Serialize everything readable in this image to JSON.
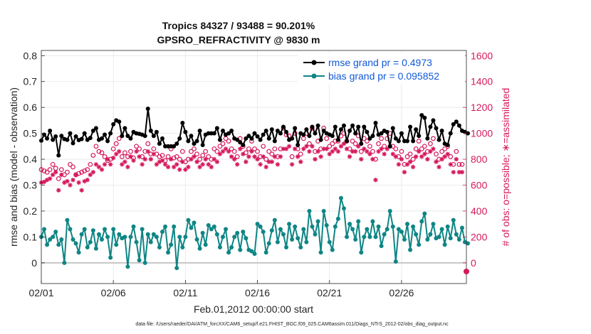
{
  "chart_data": {
    "type": "line",
    "title": "Tropics 84327 / 93488 = 90.201%",
    "subtitle": "GPSRO_REFRACTIVITY @ 9830 m",
    "xlabel": "Feb.01,2012 00:00:00 start",
    "ylabel": "rmse and bias (model - observation)",
    "y2label": "# of obs: o=possible; ∗=assimilated",
    "xticks": [
      "02/01",
      "02/06",
      "02/11",
      "02/16",
      "02/21",
      "02/26"
    ],
    "yticks": [
      "0",
      "0.1",
      "0.2",
      "0.3",
      "0.4",
      "0.5",
      "0.6",
      "0.7",
      "0.8"
    ],
    "y2ticks": [
      "0",
      "200",
      "400",
      "600",
      "800",
      "1000",
      "1200",
      "1400",
      "1600"
    ],
    "xlim": [
      0,
      29.5
    ],
    "ylim": [
      -0.08,
      0.82
    ],
    "y2lim": [
      -160,
      1640
    ],
    "footnote": "data file: /Users/raeder/DAI/ATM_forcXX/CAM6_setup/f.e21.FHIST_BGC.f09_025.CAM6assim.011/Diags_NTrS_2012-02/obs_diag_output.nc",
    "legend": [
      "rmse grand pr = 0.4973",
      "bias grand pr = 0.095852"
    ],
    "colors": {
      "rmse": "#000000",
      "bias": "#0f8585",
      "obs": "#d6185c",
      "zero": "#c6c6c6",
      "legend_text": "#1058d8"
    },
    "series": [
      {
        "name": "rmse",
        "axis": "left",
        "values": [
          0.472,
          0.495,
          0.48,
          0.51,
          0.475,
          0.488,
          0.415,
          0.49,
          0.478,
          0.475,
          0.5,
          0.462,
          0.488,
          0.474,
          0.478,
          0.5,
          0.475,
          0.482,
          0.51,
          0.52,
          0.475,
          0.48,
          0.495,
          0.47,
          0.5,
          0.535,
          0.55,
          0.545,
          0.49,
          0.52,
          0.49,
          0.48,
          0.505,
          0.5,
          0.498,
          0.495,
          0.49,
          0.595,
          0.51,
          0.49,
          0.505,
          0.46,
          0.48,
          0.45,
          0.45,
          0.45,
          0.45,
          0.46,
          0.48,
          0.54,
          0.505,
          0.47,
          0.49,
          0.46,
          0.47,
          0.51,
          0.455,
          0.495,
          0.5,
          0.5,
          0.5,
          0.52,
          0.475,
          0.51,
          0.495,
          0.5,
          0.51,
          0.48,
          0.475,
          0.465,
          0.455,
          0.48,
          0.49,
          0.48,
          0.5,
          0.488,
          0.475,
          0.495,
          0.51,
          0.48,
          0.515,
          0.47,
          0.51,
          0.5,
          0.525,
          0.505,
          0.475,
          0.48,
          0.52,
          0.455,
          0.5,
          0.495,
          0.515,
          0.49,
          0.525,
          0.5,
          0.53,
          0.475,
          0.51,
          0.5,
          0.495,
          0.49,
          0.525,
          0.475,
          0.515,
          0.53,
          0.47,
          0.51,
          0.53,
          0.5,
          0.525,
          0.46,
          0.525,
          0.505,
          0.48,
          0.49,
          0.54,
          0.495,
          0.5,
          0.51,
          0.505,
          0.45,
          0.52,
          0.48,
          0.47,
          0.5,
          0.47,
          0.47,
          0.525,
          0.47,
          0.515,
          0.49,
          0.57,
          0.56,
          0.48,
          0.525,
          0.55,
          0.52,
          0.475,
          0.51,
          0.46,
          0.455,
          0.5,
          0.535,
          0.545,
          0.53,
          0.51,
          0.505,
          0.5
        ]
      },
      {
        "name": "bias",
        "axis": "left",
        "values": [
          0.1,
          0.13,
          0.07,
          0.09,
          0.1,
          0.12,
          0.07,
          0.09,
          0.0,
          0.165,
          0.13,
          0.09,
          0.075,
          0.04,
          0.11,
          0.13,
          0.06,
          0.08,
          0.125,
          0.055,
          0.11,
          0.09,
          0.13,
          0.1,
          0.02,
          0.13,
          0.07,
          0.11,
          0.095,
          0.1,
          -0.015,
          0.1,
          0.14,
          0.08,
          0.01,
          0.13,
          0.0,
          0.11,
          0.08,
          0.11,
          0.1,
          0.06,
          0.12,
          0.14,
          0.04,
          0.07,
          0.14,
          -0.02,
          0.1,
          0.06,
          0.1,
          0.165,
          0.135,
          0.155,
          0.09,
          0.055,
          0.115,
          0.07,
          0.145,
          0.13,
          0.14,
          0.11,
          0.06,
          0.1,
          0.13,
          0.04,
          0.06,
          0.1,
          0.115,
          0.05,
          0.12,
          0.095,
          0.05,
          0.045,
          0.035,
          0.15,
          0.14,
          0.12,
          0.04,
          0.075,
          0.125,
          0.165,
          0.08,
          0.13,
          0.11,
          0.06,
          0.15,
          0.09,
          0.14,
          0.095,
          0.06,
          0.13,
          0.08,
          0.2,
          0.14,
          0.11,
          0.16,
          0.04,
          0.2,
          0.145,
          0.08,
          0.05,
          0.14,
          0.17,
          0.25,
          0.21,
          0.1,
          0.15,
          0.13,
          0.09,
          0.16,
          0.04,
          0.1,
          0.13,
          0.1,
          0.16,
          0.1,
          0.14,
          0.065,
          0.11,
          0.13,
          0.2,
          0.14,
          0.005,
          0.13,
          0.12,
          0.09,
          0.15,
          0.05,
          0.14,
          0.11,
          0.07,
          0.16,
          0.19,
          0.09,
          0.11,
          0.15,
          0.095,
          0.1,
          0.13,
          0.07,
          0.14,
          0.095,
          0.165,
          0.11,
          0.09,
          0.135,
          0.08,
          0.075
        ]
      },
      {
        "name": "possible",
        "axis": "right",
        "values": [
          720,
          710,
          700,
          720,
          760,
          730,
          650,
          720,
          680,
          700,
          760,
          740,
          680,
          690,
          700,
          710,
          720,
          760,
          830,
          900,
          860,
          850,
          820,
          790,
          800,
          880,
          920,
          960,
          820,
          850,
          820,
          860,
          810,
          900,
          880,
          820,
          860,
          920,
          840,
          880,
          840,
          820,
          830,
          790,
          820,
          880,
          810,
          820,
          800,
          860,
          780,
          800,
          860,
          880,
          840,
          800,
          830,
          860,
          820,
          800,
          880,
          860,
          900,
          920,
          960,
          940,
          880,
          860,
          820,
          960,
          900,
          850,
          880,
          940,
          880,
          860,
          820,
          900,
          800,
          860,
          840,
          880,
          820,
          880,
          1040,
          990,
          980,
          820,
          1000,
          880,
          840,
          960,
          1000,
          920,
          1040,
          860,
          940,
          880,
          1040,
          960,
          900,
          920,
          940,
          940,
          980,
          1000,
          940,
          880,
          940,
          920,
          980,
          860,
          960,
          940,
          900,
          860,
          800,
          920,
          960,
          900,
          960,
          1000,
          900,
          880,
          820,
          860,
          760,
          820,
          840,
          800,
          880,
          940,
          880,
          900,
          860,
          920,
          960,
          840,
          800,
          860,
          880,
          900,
          820,
          760,
          860,
          760,
          760
        ]
      },
      {
        "name": "assimilated",
        "axis": "right",
        "values": [
          620,
          625,
          640,
          650,
          680,
          700,
          560,
          680,
          620,
          630,
          600,
          640,
          680,
          620,
          560,
          630,
          640,
          680,
          700,
          760,
          740,
          720,
          760,
          800,
          760,
          810,
          840,
          860,
          760,
          780,
          740,
          820,
          790,
          860,
          820,
          760,
          800,
          860,
          800,
          840,
          760,
          780,
          790,
          760,
          740,
          800,
          740,
          760,
          720,
          780,
          720,
          740,
          800,
          820,
          780,
          740,
          760,
          800,
          760,
          740,
          800,
          780,
          840,
          860,
          880,
          860,
          820,
          800,
          760,
          880,
          840,
          780,
          820,
          860,
          820,
          800,
          760,
          820,
          740,
          780,
          780,
          820,
          760,
          820,
          880,
          880,
          900,
          760,
          880,
          820,
          780,
          880,
          900,
          860,
          900,
          800,
          860,
          820,
          880,
          880,
          840,
          860,
          880,
          860,
          900,
          920,
          880,
          820,
          860,
          860,
          900,
          800,
          880,
          860,
          840,
          800,
          640,
          860,
          880,
          840,
          880,
          900,
          840,
          820,
          760,
          800,
          700,
          760,
          780,
          740,
          820,
          860,
          820,
          840,
          800,
          860,
          880,
          780,
          740,
          800,
          820,
          840,
          760,
          700,
          800,
          700,
          700
        ]
      }
    ]
  }
}
